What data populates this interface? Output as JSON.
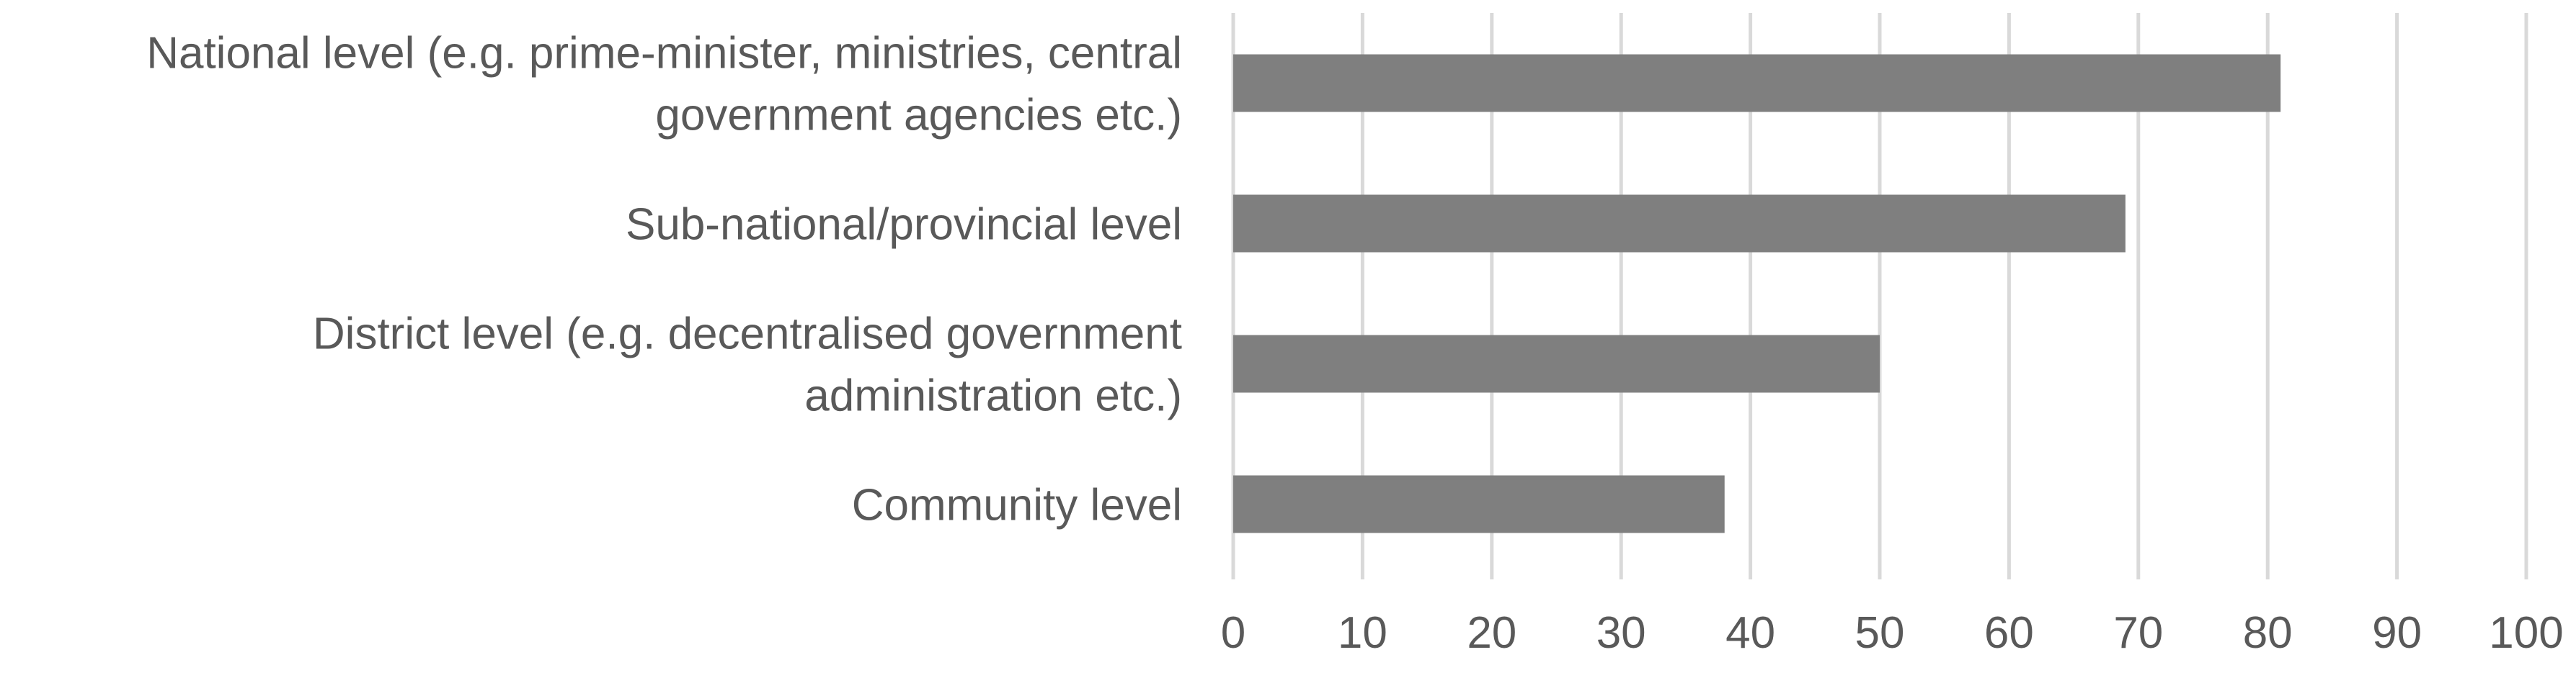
{
  "chart_data": {
    "type": "bar",
    "orientation": "horizontal",
    "categories": [
      "National level (e.g. prime-minister, ministries, central government agencies etc.)",
      "Sub-national/provincial level",
      "District level (e.g. decentralised government administration etc.)",
      "Community level"
    ],
    "category_label_lines": [
      [
        "National level (e.g. prime-minister, ministries, central",
        "government agencies etc.)"
      ],
      [
        "Sub-national/provincial level"
      ],
      [
        "District level (e.g. decentralised government",
        "administration etc.)"
      ],
      [
        "Community level"
      ]
    ],
    "values": [
      81,
      69,
      50,
      38
    ],
    "xlim": [
      0,
      100
    ],
    "xticks": [
      0,
      10,
      20,
      30,
      40,
      50,
      60,
      70,
      80,
      90,
      100
    ],
    "title": "",
    "xlabel": "",
    "ylabel": "",
    "grid": "vertical",
    "legend": "none",
    "colors": {
      "bar": "#7f7f7f",
      "grid": "#d9d9d9",
      "text": "#595959"
    }
  }
}
